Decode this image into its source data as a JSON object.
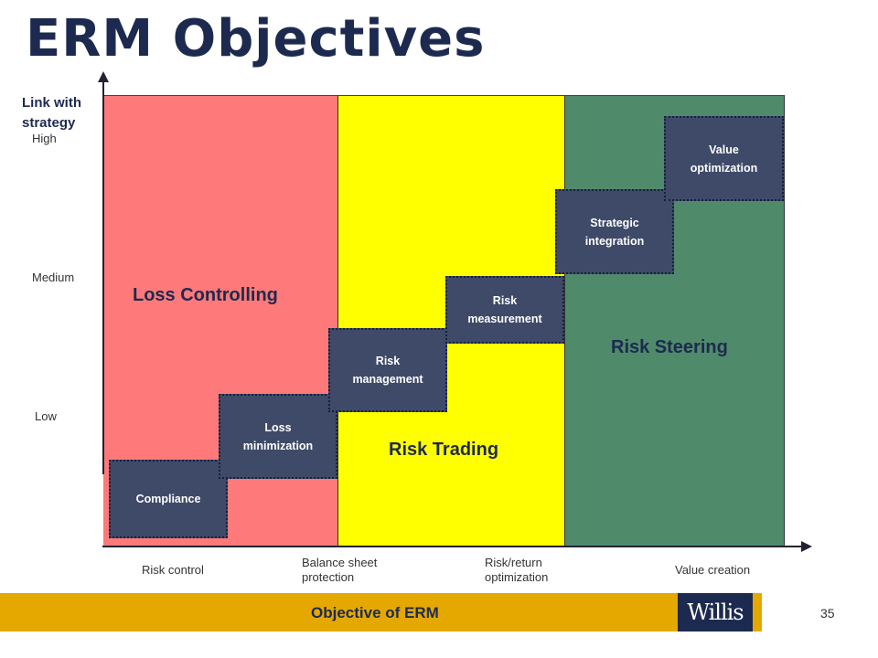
{
  "title": "ERM Objectives",
  "y_axis": {
    "title_lines": [
      "Link with",
      "strategy"
    ],
    "levels": [
      "High",
      "Medium",
      "Low"
    ]
  },
  "zones": [
    {
      "label": "Loss Controlling",
      "color": "#fe7a7a"
    },
    {
      "label": "Risk Trading",
      "color": "#ffff00"
    },
    {
      "label": "Risk Steering",
      "color": "#4f8a6a"
    }
  ],
  "steps": [
    {
      "lines": [
        "Compliance"
      ]
    },
    {
      "lines": [
        "Loss",
        "minimization"
      ]
    },
    {
      "lines": [
        "Risk",
        "management"
      ]
    },
    {
      "lines": [
        "Risk",
        "measurement"
      ]
    },
    {
      "lines": [
        "Strategic",
        "integration"
      ]
    },
    {
      "lines": [
        "Value",
        "optimization"
      ]
    }
  ],
  "x_axis": {
    "labels": [
      {
        "lines": [
          "Risk control"
        ]
      },
      {
        "lines": [
          "Balance sheet",
          "protection"
        ]
      },
      {
        "lines": [
          "Risk/return",
          "optimization"
        ]
      },
      {
        "lines": [
          "Value creation"
        ]
      }
    ],
    "title": "Objective of ERM"
  },
  "logo_text": "Willis",
  "page_number": "35",
  "colors": {
    "step_box": "#3e4a68",
    "title": "#1d2a4f",
    "footer_bar": "#e4a800"
  }
}
